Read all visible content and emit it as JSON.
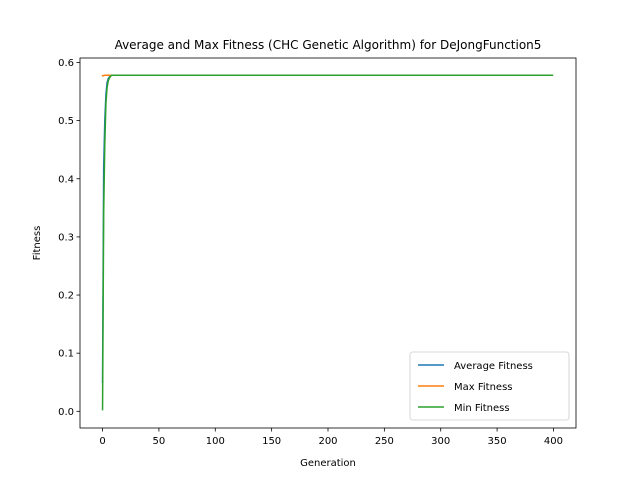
{
  "chart_data": {
    "type": "line",
    "title": "Average and Max Fitness (CHC Genetic Algorithm) for DeJongFunction5",
    "xlabel": "Generation",
    "ylabel": "Fitness",
    "xlim": [
      -20,
      420
    ],
    "ylim": [
      -0.0287,
      0.6077
    ],
    "xticks": [
      0,
      50,
      100,
      150,
      200,
      250,
      300,
      350,
      400
    ],
    "yticks": [
      0.0,
      0.1,
      0.2,
      0.3,
      0.4,
      0.5,
      0.6
    ],
    "ytick_labels": [
      "0.0",
      "0.1",
      "0.2",
      "0.3",
      "0.4",
      "0.5",
      "0.6"
    ],
    "grid": false,
    "legend_position": "lower-right",
    "series": [
      {
        "name": "Average Fitness",
        "color": "#1f77b4",
        "x": [
          0,
          1,
          2,
          3,
          4,
          5,
          6,
          7,
          8,
          10,
          399
        ],
        "y": [
          0.05,
          0.42,
          0.5,
          0.545,
          0.565,
          0.572,
          0.575,
          0.577,
          0.578,
          0.578,
          0.578
        ]
      },
      {
        "name": "Max Fitness",
        "color": "#ff7f0e",
        "x": [
          0,
          2,
          4,
          399
        ],
        "y": [
          0.577,
          0.578,
          0.578,
          0.578
        ]
      },
      {
        "name": "Min Fitness",
        "color": "#2ca02c",
        "x": [
          0,
          1,
          2,
          3,
          4,
          5,
          6,
          7,
          8,
          10,
          399
        ],
        "y": [
          0.003,
          0.34,
          0.46,
          0.53,
          0.556,
          0.568,
          0.573,
          0.576,
          0.578,
          0.578,
          0.578
        ]
      }
    ]
  }
}
